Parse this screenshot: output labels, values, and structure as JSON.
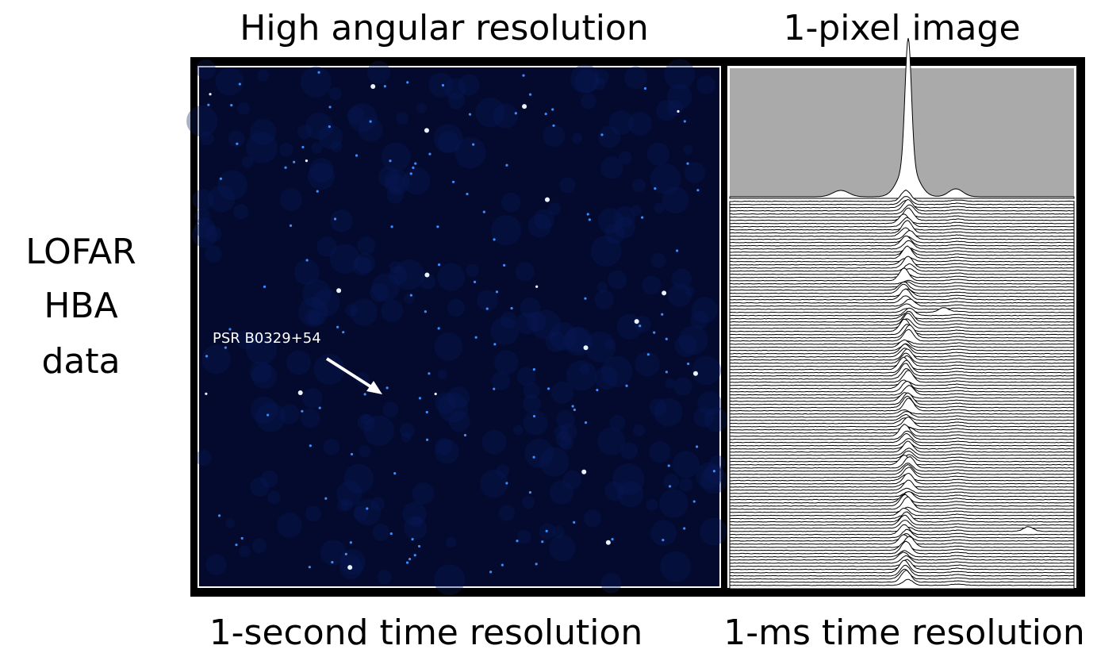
{
  "header": {
    "left_title": "High angular resolution",
    "right_title": "1-pixel image"
  },
  "side_label": {
    "lines": [
      "LOFAR",
      "HBA",
      "data"
    ]
  },
  "image": {
    "annotation": "PSR B0329+54"
  },
  "footer": {
    "left_caption": "1-second time resolution",
    "right_caption": "1-ms time resolution"
  }
}
